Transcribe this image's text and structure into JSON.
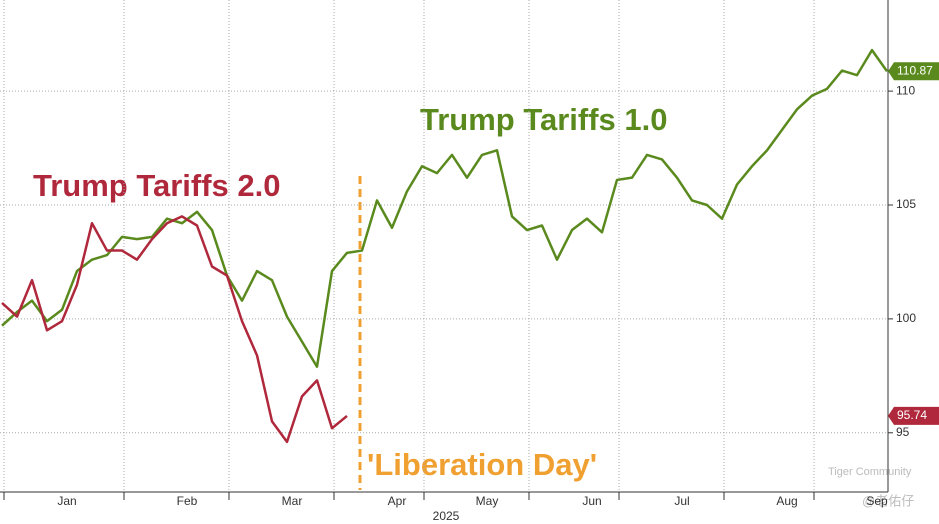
{
  "chart_data": {
    "type": "line",
    "categories": [
      null,
      null,
      null,
      null,
      "Jan",
      null,
      null,
      null,
      null,
      null,
      null,
      null,
      "Feb",
      null,
      null,
      null,
      null,
      null,
      null,
      "Mar",
      null,
      null,
      null,
      null,
      null,
      null,
      "Apr",
      null,
      null,
      null,
      null,
      null,
      "May",
      null,
      null,
      null,
      null,
      null,
      null,
      "Jun",
      null,
      null,
      null,
      null,
      null,
      "Jul",
      null,
      null,
      null,
      null,
      null,
      null,
      "Aug",
      null,
      null,
      null,
      null,
      null,
      "Sep",
      null
    ],
    "series": [
      {
        "name": "Trump Tariffs 1.0",
        "color": "#5a8a1e",
        "values": [
          99.7,
          100.3,
          100.8,
          99.9,
          100.4,
          102.1,
          102.6,
          102.8,
          103.6,
          103.5,
          103.6,
          104.4,
          104.2,
          104.7,
          103.9,
          101.9,
          100.8,
          102.1,
          101.7,
          100.1,
          99.0,
          97.9,
          102.1,
          102.9,
          103.0,
          105.2,
          104.0,
          105.6,
          106.7,
          106.4,
          107.2,
          106.2,
          107.2,
          107.4,
          104.5,
          103.9,
          104.1,
          102.6,
          103.9,
          104.4,
          103.8,
          106.1,
          106.2,
          107.2,
          107.0,
          106.2,
          105.2,
          105.0,
          104.4,
          105.9,
          106.7,
          107.4,
          108.3,
          109.2,
          109.8,
          110.1,
          110.9,
          110.7,
          111.8,
          110.87
        ]
      },
      {
        "name": "Trump Tariffs 2.0",
        "color": "#b0283c",
        "values": [
          100.7,
          100.1,
          101.7,
          99.5,
          99.9,
          101.5,
          104.2,
          103.0,
          103.0,
          102.6,
          103.5,
          104.2,
          104.5,
          104.1,
          102.3,
          101.9,
          99.9,
          98.4,
          95.5,
          94.6,
          96.6,
          97.3,
          95.2,
          95.74,
          null,
          null,
          null,
          null,
          null,
          null,
          null,
          null,
          null,
          null,
          null,
          null,
          null,
          null,
          null,
          null,
          null,
          null,
          null,
          null,
          null,
          null,
          null,
          null,
          null,
          null,
          null,
          null,
          null,
          null,
          null,
          null,
          null,
          null,
          null,
          null
        ]
      }
    ],
    "ylim": [
      92.4,
      114
    ],
    "yticks": [
      95,
      100,
      105,
      110
    ],
    "grid": true,
    "year_label": "2025",
    "event_label": "'Liberation Day'",
    "watermark": [
      "Tiger Community",
      "@老佑仔"
    ]
  }
}
